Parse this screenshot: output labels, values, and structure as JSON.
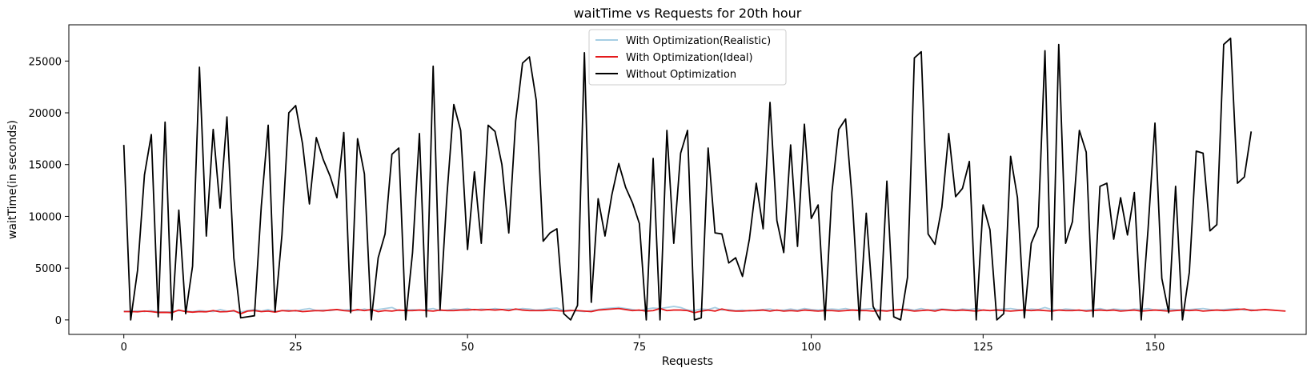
{
  "chart_data": {
    "type": "line",
    "title": "waitTime vs Requests for 20th hour",
    "xlabel": "Requests",
    "ylabel": "waitTime(in seconds)",
    "xlim": [
      -8,
      172
    ],
    "ylim": [
      -1400,
      28500
    ],
    "xticks": [
      0,
      25,
      50,
      75,
      100,
      125,
      150
    ],
    "yticks": [
      0,
      5000,
      10000,
      15000,
      20000,
      25000
    ],
    "grid": false,
    "legend_position": "top-center",
    "series": [
      {
        "name": "With Optimization(Realistic)",
        "color": "#a6cee3",
        "values": [
          850,
          820,
          870,
          800,
          900,
          780,
          760,
          800,
          900,
          850,
          800,
          900,
          850,
          800,
          1000,
          850,
          820,
          760,
          900,
          1000,
          850,
          1000,
          800,
          900,
          950,
          850,
          1000,
          1100,
          900,
          950,
          900,
          1000,
          950,
          1000,
          900,
          1050,
          900,
          1000,
          1100,
          1200,
          900,
          950,
          1000,
          950,
          1000,
          1100,
          900,
          950,
          1050,
          1000,
          1100,
          950,
          1050,
          1000,
          1100,
          1000,
          1050,
          1000,
          1100,
          1050,
          950,
          1000,
          1100,
          1150,
          900,
          950,
          850,
          800,
          900,
          1000,
          1100,
          1150,
          1200,
          1100,
          1000,
          900,
          1050,
          1150,
          1100,
          1200,
          1300,
          1200,
          950,
          900,
          1050,
          1000,
          1200,
          950,
          1000,
          900,
          950,
          850,
          950,
          1000,
          1050,
          900,
          950,
          1050,
          950,
          1100,
          1000,
          950,
          1000,
          1050,
          1000,
          1100,
          950,
          1000,
          1050,
          1100,
          950,
          900,
          950,
          1000,
          1050,
          950,
          1100,
          950,
          1000,
          1050,
          1000,
          950,
          1050,
          1000,
          1100,
          950,
          900,
          1000,
          1050,
          1100,
          1000,
          950,
          1050,
          1000,
          1200,
          1000,
          950,
          1050,
          1000,
          900,
          950,
          1000,
          1100,
          950,
          1050,
          1000,
          950,
          1050,
          1000,
          1100,
          950,
          1000,
          1050,
          1000,
          950,
          1000,
          1050,
          1100,
          1000,
          950,
          1000,
          1050,
          1100,
          950,
          1000,
          900
        ]
      },
      {
        "name": "With Optimization(Ideal)",
        "color": "#e41a1c",
        "values": [
          800,
          800,
          780,
          850,
          800,
          720,
          730,
          700,
          950,
          800,
          750,
          800,
          780,
          900,
          780,
          800,
          900,
          600,
          850,
          900,
          800,
          850,
          750,
          900,
          850,
          900,
          800,
          850,
          900,
          870,
          950,
          1000,
          900,
          850,
          1000,
          900,
          1000,
          800,
          900,
          850,
          950,
          900,
          900,
          950,
          900,
          850,
          950,
          900,
          900,
          950,
          950,
          1000,
          950,
          1000,
          950,
          1000,
          900,
          1050,
          950,
          900,
          900,
          900,
          950,
          900,
          850,
          900,
          900,
          850,
          800,
          950,
          1000,
          1050,
          1100,
          1000,
          900,
          950,
          850,
          900,
          1100,
          900,
          950,
          950,
          900,
          700,
          850,
          950,
          850,
          1050,
          900,
          850,
          850,
          900,
          900,
          950,
          850,
          950,
          850,
          900,
          850,
          950,
          900,
          850,
          900,
          900,
          850,
          900,
          950,
          900,
          900,
          850,
          900,
          850,
          950,
          1000,
          950,
          850,
          900,
          950,
          850,
          1000,
          950,
          900,
          950,
          900,
          850,
          950,
          900,
          950,
          900,
          850,
          900,
          950,
          900,
          950,
          900,
          850,
          950,
          900,
          900,
          950,
          850,
          900,
          950,
          900,
          950,
          850,
          900,
          950,
          850,
          900,
          950,
          900,
          850,
          900,
          950,
          900,
          950,
          850,
          900,
          950,
          900,
          950,
          1000,
          1050,
          900,
          950,
          1000,
          950,
          900,
          850
        ]
      },
      {
        "name": "Without Optimization",
        "color": "#000000",
        "values": [
          16900,
          0,
          4800,
          14000,
          17900,
          300,
          19100,
          0,
          10600,
          600,
          5200,
          24400,
          8100,
          18400,
          10800,
          19600,
          6000,
          200,
          300,
          400,
          11000,
          18800,
          800,
          8200,
          20000,
          20700,
          17000,
          11200,
          17600,
          15500,
          13900,
          11800,
          18100,
          700,
          17500,
          14100,
          0,
          6000,
          8300,
          16000,
          16600,
          0,
          6500,
          18000,
          300,
          24500,
          1000,
          12000,
          20800,
          18300,
          6800,
          14300,
          7400,
          18800,
          18200,
          15000,
          8400,
          19200,
          24800,
          25400,
          21200,
          7600,
          8400,
          8800,
          600,
          0,
          1400,
          25800,
          1700,
          11700,
          8100,
          12100,
          15100,
          12800,
          11300,
          9300,
          0,
          15600,
          0,
          18300,
          7400,
          16100,
          18300,
          0,
          200,
          16600,
          8400,
          8300,
          5500,
          6000,
          4200,
          7800,
          13200,
          8800,
          21000,
          9600,
          6500,
          16900,
          7100,
          18900,
          9800,
          11100,
          0,
          12300,
          18400,
          19400,
          11300,
          0,
          10300,
          1300,
          0,
          13400,
          300,
          0,
          4100,
          25300,
          25900,
          8300,
          7300,
          10900,
          18000,
          11900,
          12700,
          15300,
          0,
          11100,
          8700,
          0,
          600,
          15800,
          11800,
          200,
          7400,
          9000,
          26000,
          0,
          26600,
          7400,
          9500,
          18300,
          16200,
          300,
          12900,
          13200,
          7800,
          11800,
          8200,
          12300,
          0,
          8800,
          19000,
          4000,
          700,
          12900,
          0,
          4600,
          16300,
          16100,
          8600,
          9200,
          26600,
          27200,
          13200,
          13800,
          18200
        ]
      }
    ]
  }
}
